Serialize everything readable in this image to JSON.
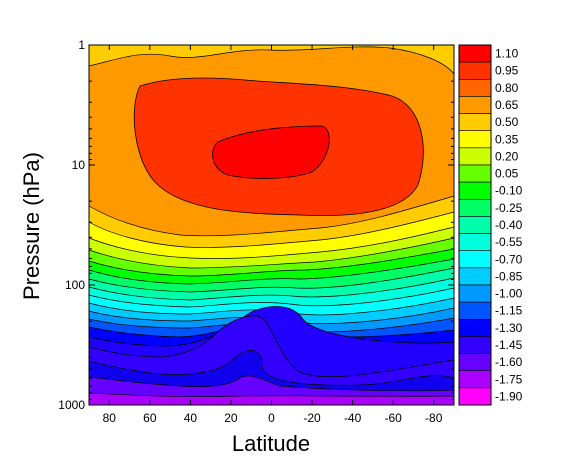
{
  "chart_data": {
    "type": "contour",
    "title": "",
    "xlabel": "Latitude",
    "ylabel": "Pressure (hPa)",
    "x_ticks": [
      80,
      60,
      40,
      20,
      0,
      -20,
      -40,
      -60,
      -80
    ],
    "x_tick_labels": [
      "80",
      "60",
      "40",
      "20",
      "0",
      "-20",
      "-40",
      "-60",
      "-80"
    ],
    "xlim": [
      90,
      -90
    ],
    "y_scale": "log",
    "y_ticks": [
      1,
      10,
      100,
      1000
    ],
    "y_tick_labels": [
      "1",
      "10",
      "100",
      "1000"
    ],
    "ylim": [
      1,
      1000
    ],
    "colorbar": {
      "levels": [
        "1.10",
        "0.95",
        "0.80",
        "0.65",
        "0.50",
        "0.35",
        "0.20",
        "0.05",
        "-0.10",
        "-0.25",
        "-0.40",
        "-0.55",
        "-0.70",
        "-0.85",
        "-1.00",
        "-1.15",
        "-1.30",
        "-1.45",
        "-1.60",
        "-1.75",
        "-1.90"
      ],
      "colors": [
        "#ff0000",
        "#ff3300",
        "#ff6600",
        "#ff9900",
        "#ffcc00",
        "#ffff00",
        "#ccff00",
        "#66ff00",
        "#00ff00",
        "#00ff66",
        "#00ffaa",
        "#00ffdd",
        "#00ffff",
        "#00ccff",
        "#0099ff",
        "#0055ff",
        "#0000ff",
        "#3300ff",
        "#6600ff",
        "#aa00ff",
        "#ff00ff"
      ]
    },
    "contour_bands": [
      {
        "level": "1.10",
        "fill": "#ff0000"
      },
      {
        "level": "0.95",
        "fill": "#ff3300"
      },
      {
        "level": "0.80",
        "fill": "#ff6600"
      },
      {
        "level": "0.65",
        "fill": "#ff9900"
      },
      {
        "level": "0.50",
        "fill": "#ffcc00"
      },
      {
        "level": "0.35",
        "fill": "#ffff00"
      },
      {
        "level": "0.20",
        "fill": "#ccff00"
      },
      {
        "level": "0.05",
        "fill": "#66ff00"
      },
      {
        "level": "-0.10",
        "fill": "#00ff00"
      },
      {
        "level": "-0.25",
        "fill": "#00ff66"
      },
      {
        "level": "-0.40",
        "fill": "#00ffaa"
      },
      {
        "level": "-0.55",
        "fill": "#00ffdd"
      },
      {
        "level": "-0.70",
        "fill": "#00ffff"
      },
      {
        "level": "-0.85",
        "fill": "#00ccff"
      },
      {
        "level": "-1.00",
        "fill": "#0099ff"
      },
      {
        "level": "-1.15",
        "fill": "#0055ff"
      },
      {
        "level": "-1.30",
        "fill": "#0000ff"
      },
      {
        "level": "-1.45",
        "fill": "#3300ff"
      },
      {
        "level": "-1.60",
        "fill": "#6600ff"
      },
      {
        "level": "-1.75",
        "fill": "#aa00ff"
      }
    ]
  }
}
